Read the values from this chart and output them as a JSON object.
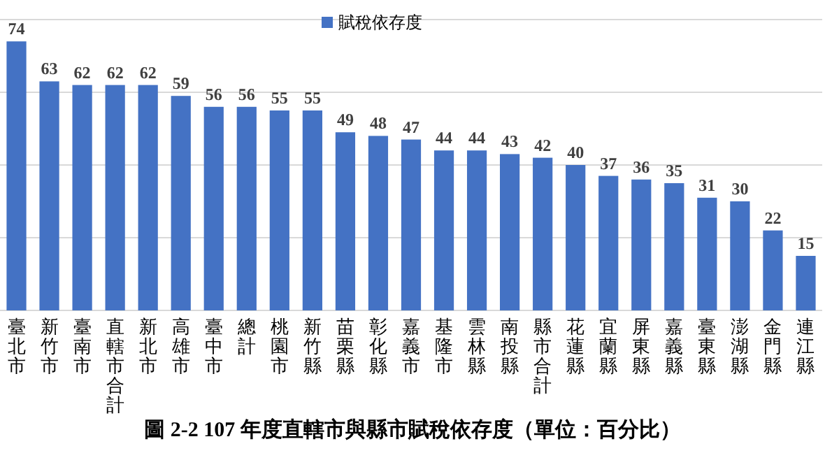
{
  "chart_data": {
    "type": "bar",
    "categories": [
      "臺北市",
      "新竹市",
      "臺南市",
      "直轄市合計",
      "新北市",
      "高雄市",
      "臺中市",
      "總計",
      "桃園市",
      "新竹縣",
      "苗栗縣",
      "彰化縣",
      "嘉義市",
      "基隆市",
      "雲林縣",
      "南投縣",
      "縣市合計",
      "花蓮縣",
      "宜蘭縣",
      "屏東縣",
      "嘉義縣",
      "臺東縣",
      "澎湖縣",
      "金門縣",
      "連江縣"
    ],
    "series": [
      {
        "name": "賦稅依存度",
        "color": "#4472c4",
        "values": [
          74,
          63,
          62,
          62,
          62,
          59,
          56,
          56,
          55,
          55,
          49,
          48,
          47,
          44,
          44,
          43,
          42,
          40,
          37,
          36,
          35,
          31,
          30,
          22,
          15
        ]
      }
    ],
    "ylim": [
      0,
      80
    ],
    "yticks": [
      {
        "value": 0,
        "label": null
      },
      {
        "value": 20,
        "label": null
      },
      {
        "value": 40,
        "label": null
      },
      {
        "value": 60,
        "label": null
      },
      {
        "value": 80,
        "label": null
      }
    ],
    "grid": "y",
    "legend": "top",
    "data_labels": true,
    "tick_labels": "x",
    "annotations": [
      "圖 2-2 107 年度直轄市與縣市賦稅依存度（單位：百分比）"
    ]
  }
}
